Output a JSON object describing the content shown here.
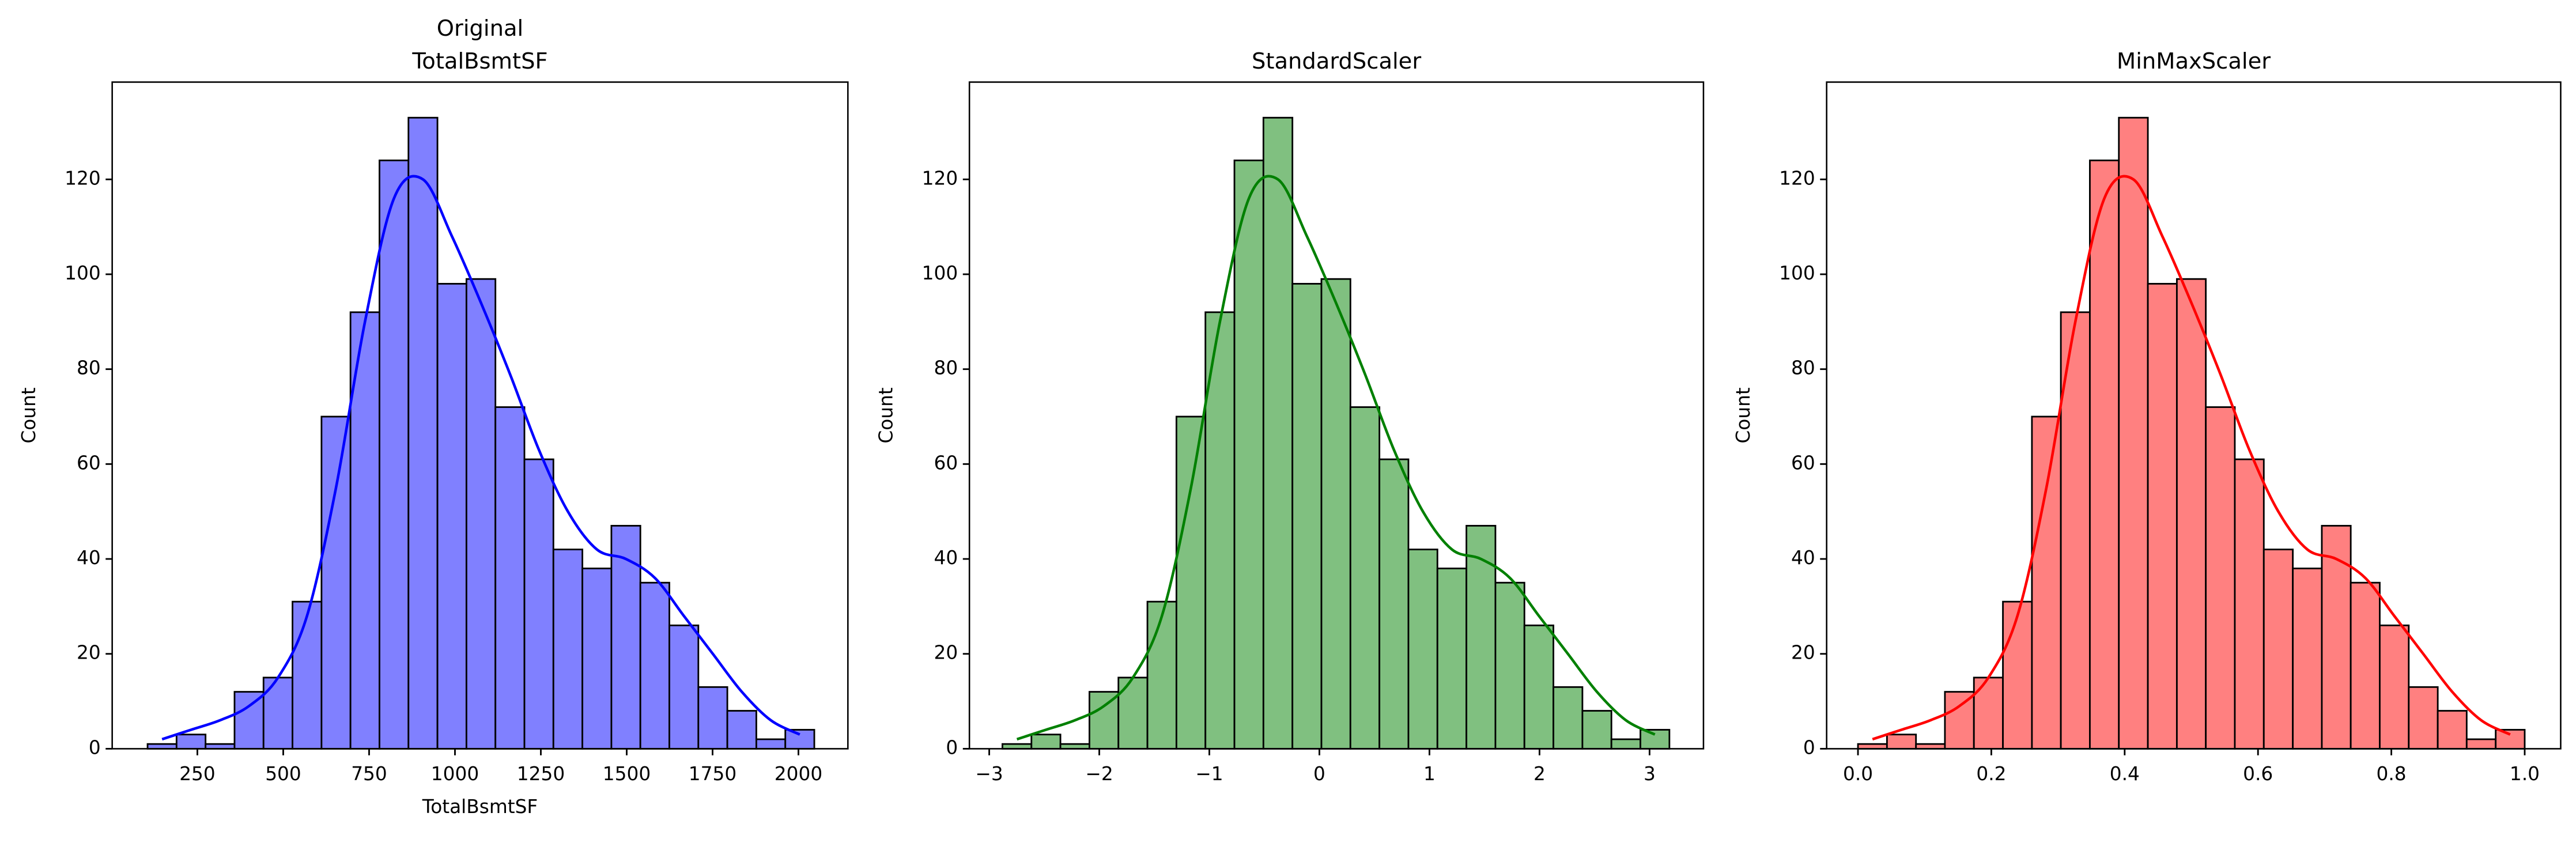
{
  "chart_data": [
    {
      "type": "histogram",
      "title": [
        "Original",
        "TotalBsmtSF"
      ],
      "xlabel": "TotalBsmtSF",
      "ylabel": "Count",
      "bins": [
        105,
        189.4,
        273.8,
        358.2,
        442.6,
        527,
        611.4,
        695.8,
        780.2,
        864.6,
        949,
        1033.4,
        1117.8,
        1202.2,
        1286.6,
        1371,
        1455.4,
        1539.8,
        1624.2,
        1708.6,
        1793,
        1877.4,
        1961.8,
        2046.2
      ],
      "values": [
        1,
        3,
        1,
        12,
        15,
        31,
        70,
        92,
        124,
        133,
        98,
        99,
        72,
        61,
        42,
        38,
        47,
        35,
        26,
        13,
        8,
        2,
        4
      ],
      "kde": [
        2,
        4,
        6,
        9,
        15,
        28,
        55,
        90,
        116,
        120,
        108,
        94,
        79,
        63,
        50,
        42,
        40,
        36,
        28,
        20,
        12,
        6,
        3
      ],
      "color": "#8080ff",
      "line_color": "#0000ff",
      "xlim": [
        2,
        2144
      ],
      "xticks": [
        250,
        500,
        750,
        1000,
        1250,
        1500,
        1750,
        2000
      ],
      "ylim": [
        0,
        140.5
      ],
      "yticks": [
        0,
        20,
        40,
        60,
        80,
        100,
        120
      ]
    },
    {
      "type": "histogram",
      "title": "StandardScaler",
      "ylabel": "Count",
      "bins": [
        -2.88,
        -2.6165,
        -2.353,
        -2.0895,
        -1.826,
        -1.5625,
        -1.299,
        -1.0355,
        -0.772,
        -0.5085,
        -0.245,
        0.0185,
        0.282,
        0.5455,
        0.809,
        1.0725,
        1.336,
        1.5995,
        1.863,
        2.1265,
        2.39,
        2.6535,
        2.917,
        3.1805
      ],
      "values": [
        1,
        3,
        1,
        12,
        15,
        31,
        70,
        92,
        124,
        133,
        98,
        99,
        72,
        61,
        42,
        38,
        47,
        35,
        26,
        13,
        8,
        2,
        4
      ],
      "kde": [
        2,
        4,
        6,
        9,
        15,
        28,
        55,
        90,
        116,
        120,
        108,
        94,
        79,
        63,
        50,
        42,
        40,
        36,
        28,
        20,
        12,
        6,
        3
      ],
      "color": "#80c080",
      "line_color": "#008000",
      "xlim": [
        -3.18,
        3.49
      ],
      "xticks": [
        {
          "value": -3,
          "label": "−3"
        },
        {
          "value": -2,
          "label": "−2"
        },
        {
          "value": -1,
          "label": "−1"
        },
        0,
        1,
        2,
        3
      ],
      "ylim": [
        0,
        140.5
      ],
      "yticks": [
        0,
        20,
        40,
        60,
        80,
        100,
        120
      ]
    },
    {
      "type": "histogram",
      "title": "MinMaxScaler",
      "ylabel": "Count",
      "bins": [
        0,
        0.0435,
        0.087,
        0.1304,
        0.1739,
        0.2174,
        0.2609,
        0.3043,
        0.3478,
        0.3913,
        0.4348,
        0.4783,
        0.5217,
        0.5652,
        0.6087,
        0.6522,
        0.6957,
        0.7391,
        0.7826,
        0.8261,
        0.8696,
        0.913,
        0.9565,
        1
      ],
      "values": [
        1,
        3,
        1,
        12,
        15,
        31,
        70,
        92,
        124,
        133,
        98,
        99,
        72,
        61,
        42,
        38,
        47,
        35,
        26,
        13,
        8,
        2,
        4
      ],
      "kde": [
        2,
        4,
        6,
        9,
        15,
        28,
        55,
        90,
        116,
        120,
        108,
        94,
        79,
        63,
        50,
        42,
        40,
        36,
        28,
        20,
        12,
        6,
        3
      ],
      "color": "#ff8080",
      "line_color": "#ff0000",
      "xlim": [
        -0.047,
        1.054
      ],
      "xticks": [
        {
          "value": 0,
          "label": "0.0"
        },
        {
          "value": 0.2,
          "label": "0.2"
        },
        {
          "value": 0.4,
          "label": "0.4"
        },
        {
          "value": 0.6,
          "label": "0.6"
        },
        {
          "value": 0.8,
          "label": "0.8"
        },
        {
          "value": 1,
          "label": "1.0"
        }
      ],
      "ylim": [
        0,
        140.5
      ],
      "yticks": [
        0,
        20,
        40,
        60,
        80,
        100,
        120
      ]
    }
  ]
}
